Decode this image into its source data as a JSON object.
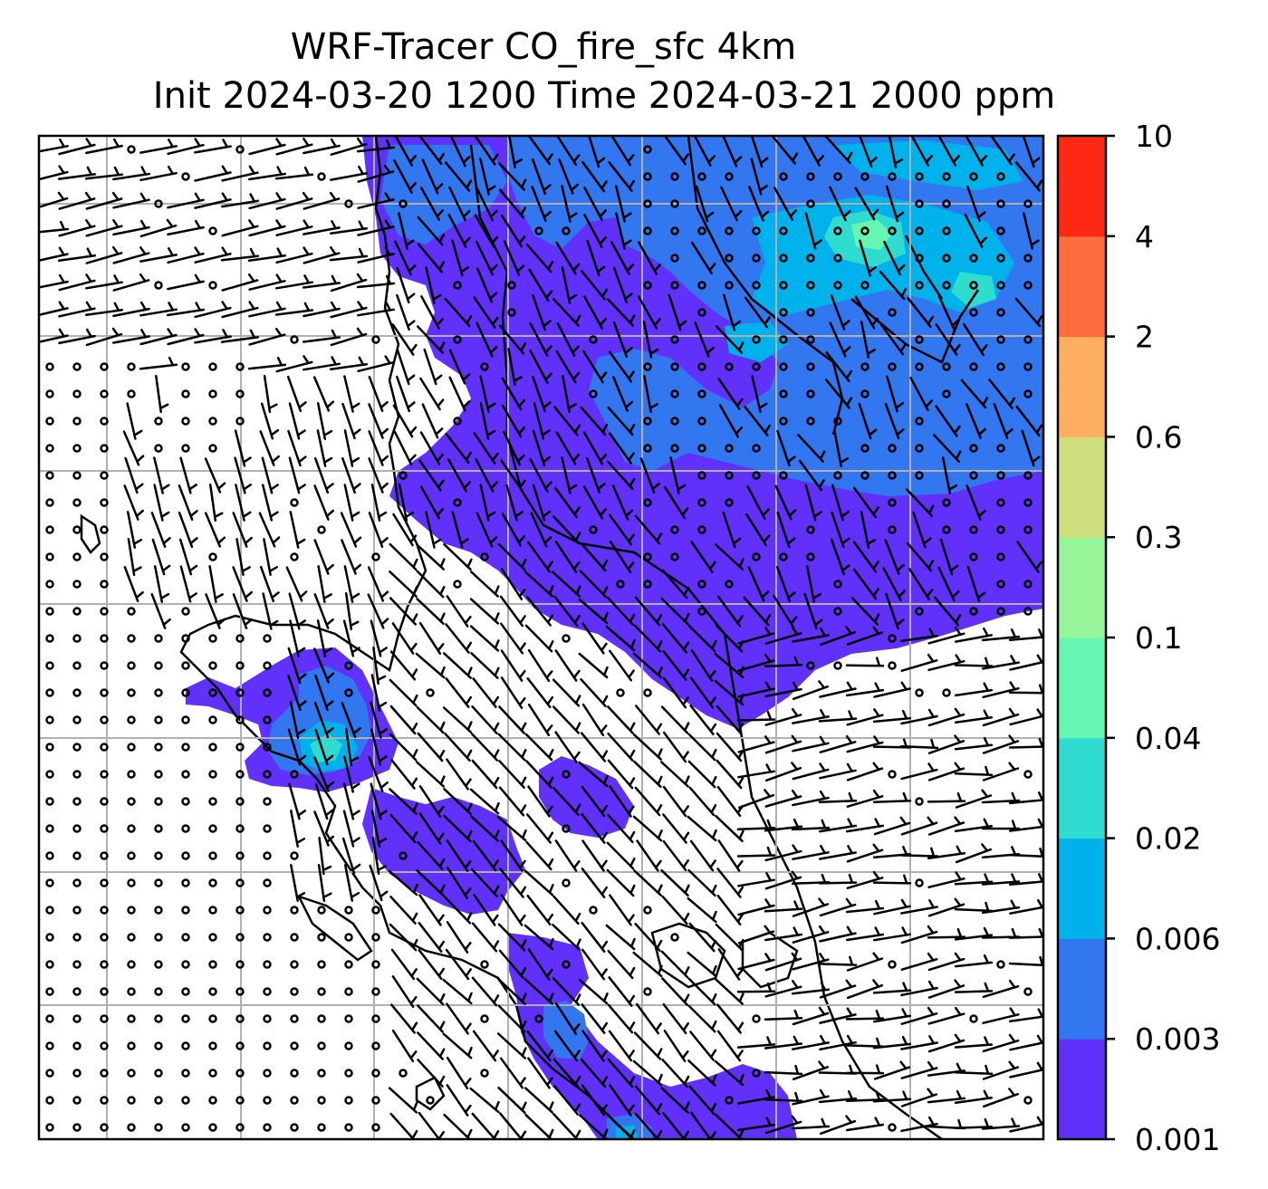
{
  "title": {
    "line1": "WRF-Tracer CO_fire_sfc 4km",
    "line2": "Init 2024-03-20 1200 Time 2024-03-21 2000 ppm"
  },
  "colorbar": {
    "levels": [
      "0.001",
      "0.003",
      "0.006",
      "0.02",
      "0.04",
      "0.1",
      "0.3",
      "0.6",
      "2",
      "4",
      "10"
    ],
    "colors": [
      "#6130fa",
      "#3276f0",
      "#00b2ec",
      "#30dcd0",
      "#66f6b4",
      "#96f699",
      "#cede7f",
      "#ffae5f",
      "#ff6c3d",
      "#ff2814"
    ]
  },
  "map": {
    "plume_colors": {
      "base": "#6130fa",
      "level2": "#3276f0",
      "level3": "#00b2ec",
      "level4": "#30dcd0",
      "level5": "#66f6b4"
    },
    "grid_color": "#b0b0b0"
  }
}
